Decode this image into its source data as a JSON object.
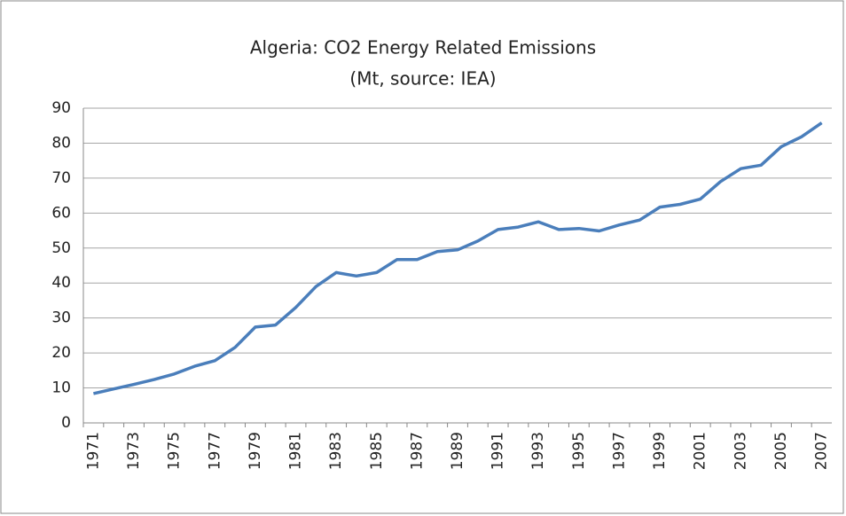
{
  "chart_data": {
    "type": "line",
    "title": "Algeria: CO2 Energy Related Emissions",
    "subtitle": "(Mt, source: IEA)",
    "categories": [
      "1971",
      null,
      "1973",
      null,
      "1975",
      null,
      "1977",
      null,
      "1979",
      null,
      "1981",
      null,
      "1983",
      null,
      "1985",
      null,
      "1987",
      null,
      "1989",
      null,
      "1991",
      null,
      "1993",
      null,
      "1995",
      null,
      "1997",
      null,
      "1999",
      null,
      "2001",
      null,
      "2003",
      null,
      "2005",
      null,
      "2007"
    ],
    "values": [
      8.4,
      9.7,
      11,
      12.4,
      14,
      16.2,
      17.8,
      21.6,
      27.4,
      28,
      33,
      39,
      43,
      42,
      43,
      46.7,
      46.7,
      49,
      49.5,
      52,
      55.3,
      56,
      57.5,
      55.3,
      55.6,
      54.9,
      56.6,
      58,
      61.7,
      62.5,
      64,
      69,
      72.7,
      73.7,
      79,
      81.8,
      85.8
    ],
    "color": "#4a7ebb",
    "ylim": [
      0,
      90
    ],
    "yticks": [
      0,
      10,
      20,
      30,
      40,
      50,
      60,
      70,
      80,
      90
    ],
    "grid": true
  }
}
